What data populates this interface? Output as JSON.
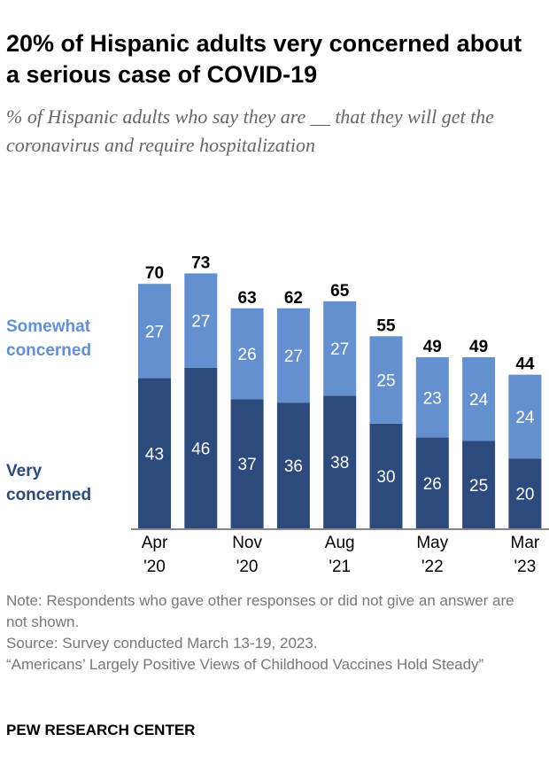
{
  "title": "20% of Hispanic adults very concerned about a serious case of COVID-19",
  "subtitle": "% of Hispanic adults who say they are __ that they will get the coronavirus and require hospitalization",
  "notes": {
    "note": "Note: Respondents who gave other responses or did not give an answer are not shown.",
    "source": "Source: Survey conducted March 13-19, 2023.",
    "report": "“Americans’ Largely Positive Views of Childhood Vaccines Hold Steady”"
  },
  "brand": "PEW RESEARCH CENTER",
  "chart_data": {
    "type": "bar",
    "stacked": true,
    "categories": [
      "Apr '20",
      "",
      "Nov '20",
      "",
      "Aug '21",
      "",
      "May '22",
      "",
      "Mar '23"
    ],
    "series": [
      {
        "name": "Very concerned",
        "color": "#2c4a7c",
        "values": [
          43,
          46,
          37,
          36,
          38,
          30,
          26,
          25,
          20
        ]
      },
      {
        "name": "Somewhat concerned",
        "color": "#6490d0",
        "values": [
          27,
          27,
          26,
          27,
          27,
          25,
          23,
          24,
          24
        ]
      }
    ],
    "totals": [
      70,
      73,
      63,
      62,
      65,
      55,
      49,
      49,
      44
    ],
    "legend_position": "left",
    "grid": false
  }
}
